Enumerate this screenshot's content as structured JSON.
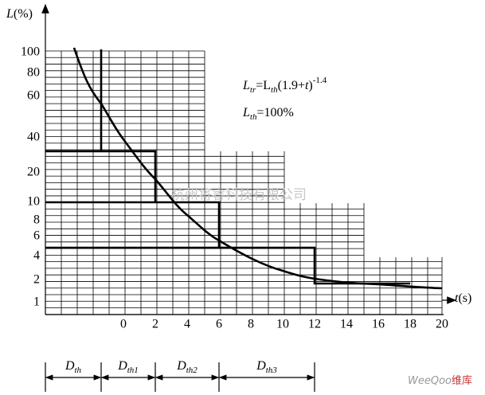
{
  "axis": {
    "y_label": {
      "main": "L",
      "unit": "(%)"
    },
    "x_label": {
      "main": "t",
      "unit": "(s)"
    },
    "y_ticks": [
      "100",
      "80",
      "60",
      "40",
      "20",
      "10",
      "8",
      "6",
      "4",
      "2",
      "1"
    ],
    "x_ticks": [
      "0",
      "2",
      "4",
      "6",
      "8",
      "10",
      "12",
      "14",
      "16",
      "18",
      "20"
    ]
  },
  "formula": {
    "line1": [
      "L",
      "tr",
      "=L",
      "th",
      "(1.9+",
      "t",
      ")",
      "-1.4"
    ],
    "line2": [
      "L",
      "th",
      "=100%"
    ]
  },
  "intervals": [
    [
      "D",
      "th"
    ],
    [
      "D",
      "th1"
    ],
    [
      "D",
      "th2"
    ],
    [
      "D",
      "th3"
    ]
  ],
  "watermark": "杭州将睿科技有限公司",
  "logo": {
    "brand": "WeeQoo",
    "suffix": "维库"
  }
}
